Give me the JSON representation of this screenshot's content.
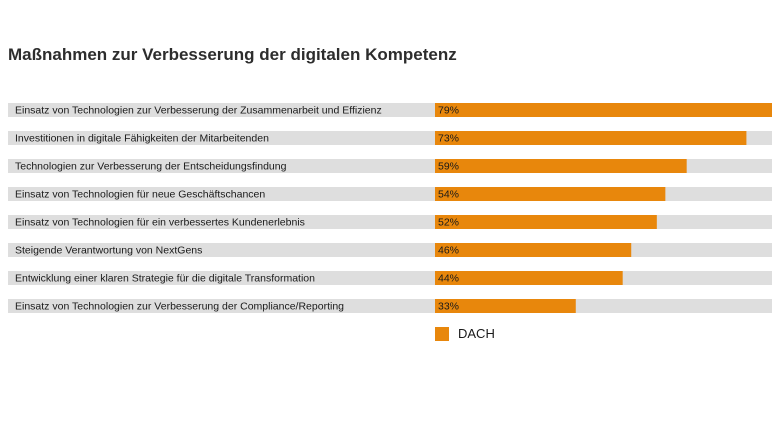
{
  "chart_data": {
    "type": "bar",
    "orientation": "horizontal",
    "title": "Maßnahmen zur Verbesserung der digitalen Kompetenz",
    "categories": [
      "Einsatz von Technologien zur Verbesserung der Zusammenarbeit und Effizienz",
      "Investitionen in digitale Fähigkeiten der Mitarbeitenden",
      "Technologien zur Verbesserung der Entscheidungsfindung",
      "Einsatz von Technologien für neue Geschäftschancen",
      "Einsatz von Technologien für ein verbessertes Kundenerlebnis",
      "Steigende Verantwortung von NextGens",
      "Entwicklung einer klaren Strategie für die digitale Transformation",
      "Einsatz von Technologien zur Verbesserung der Compliance/Reporting"
    ],
    "series": [
      {
        "name": "DACH",
        "values": [
          79,
          73,
          59,
          54,
          52,
          46,
          44,
          33
        ],
        "value_labels": [
          "79%",
          "73%",
          "59%",
          "54%",
          "52%",
          "46%",
          "44%",
          "33%"
        ]
      }
    ],
    "xlim": [
      0,
      79
    ],
    "legend_position": "bottom",
    "colors": {
      "bar": "#e8870c",
      "track": "#dedede"
    }
  }
}
